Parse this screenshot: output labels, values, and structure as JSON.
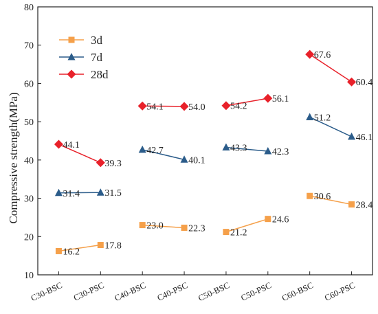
{
  "chart_data": {
    "type": "line",
    "ylabel": "Compressive strength(MPa)",
    "ylim": [
      10,
      80
    ],
    "yticks": [
      10,
      20,
      30,
      40,
      50,
      60,
      70,
      80
    ],
    "categories": [
      "C30-BSC",
      "C30-PSC",
      "C40-BSC",
      "C40-PSC",
      "C50-BSC",
      "C50-PSC",
      "C60-BSC",
      "C60-PSC"
    ],
    "segments": [
      [
        0,
        1
      ],
      [
        2,
        3
      ],
      [
        4,
        5
      ],
      [
        6,
        7
      ]
    ],
    "legend_position": "top-left",
    "grid": false,
    "series": [
      {
        "name": "3d",
        "color": "#F5A04A",
        "marker": "square",
        "values": [
          16.2,
          17.8,
          23.0,
          22.3,
          21.2,
          24.6,
          30.6,
          28.4
        ],
        "labels": [
          "16.2",
          "17.8",
          "23.0",
          "22.3",
          "21.2",
          "24.6",
          "30.6",
          "28.4"
        ]
      },
      {
        "name": "7d",
        "color": "#2B5C8A",
        "marker": "triangle",
        "values": [
          31.4,
          31.5,
          42.7,
          40.1,
          43.3,
          42.3,
          51.2,
          46.1
        ],
        "labels": [
          "31.4",
          "31.5",
          "42.7",
          "40.1",
          "43.3",
          "42.3",
          "51.2",
          "46.1"
        ]
      },
      {
        "name": "28d",
        "color": "#E8212A",
        "marker": "diamond",
        "values": [
          44.1,
          39.3,
          54.1,
          54.0,
          54.2,
          56.1,
          67.6,
          60.4
        ],
        "labels": [
          "44.1",
          "39.3",
          "54.1",
          "54.0",
          "54.2",
          "56.1",
          "67.6",
          "60.4"
        ]
      }
    ]
  }
}
